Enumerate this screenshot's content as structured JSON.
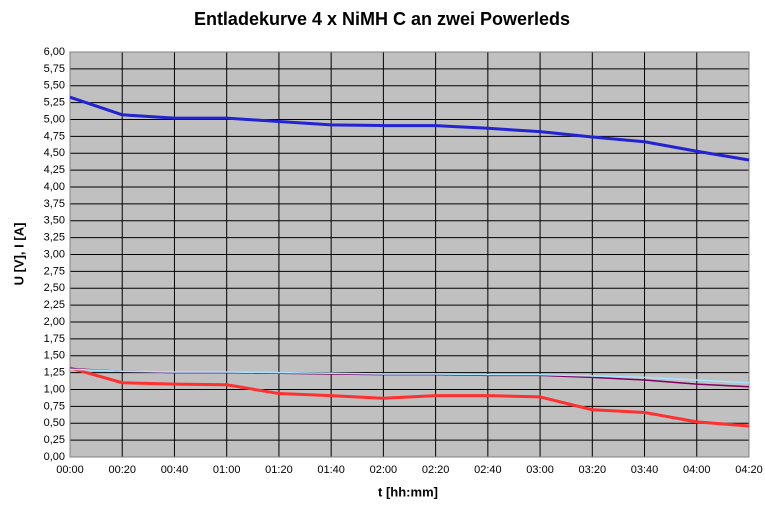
{
  "chart_data": {
    "type": "line",
    "title": "Entladekurve 4 x NiMH C an zwei Powerleds",
    "x_label": "t [hh:mm]",
    "y_label": "U [V], I [A]",
    "categories": [
      "00:00",
      "00:20",
      "00:40",
      "01:00",
      "01:20",
      "01:40",
      "02:00",
      "02:20",
      "02:40",
      "03:00",
      "03:20",
      "03:40",
      "04:00",
      "04:20"
    ],
    "series": [
      {
        "color": "#2323d2",
        "values": [
          5.33,
          5.07,
          5.02,
          5.02,
          4.97,
          4.92,
          4.91,
          4.91,
          4.87,
          4.82,
          4.74,
          4.67,
          4.53,
          4.4
        ]
      },
      {
        "color": "#ff3030",
        "values": [
          1.32,
          1.1,
          1.08,
          1.07,
          0.94,
          0.91,
          0.87,
          0.91,
          0.91,
          0.89,
          0.7,
          0.66,
          0.52,
          0.46
        ]
      },
      {
        "color": "#800060",
        "values": [
          1.31,
          1.27,
          1.25,
          1.25,
          1.24,
          1.23,
          1.22,
          1.22,
          1.21,
          1.21,
          1.18,
          1.14,
          1.08,
          1.04
        ]
      },
      {
        "color": "#a8e4ff",
        "values": [
          1.3,
          1.27,
          1.26,
          1.26,
          1.25,
          1.24,
          1.23,
          1.23,
          1.22,
          1.22,
          1.2,
          1.18,
          1.14,
          1.1
        ]
      }
    ],
    "ylim": [
      0,
      6
    ],
    "yticks": [
      {
        "value": 0,
        "label": "0,00"
      },
      {
        "value": 0.25,
        "label": "0,25"
      },
      {
        "value": 0.5,
        "label": "0,50"
      },
      {
        "value": 0.75,
        "label": "0,75"
      },
      {
        "value": 1,
        "label": "1,00"
      },
      {
        "value": 1.25,
        "label": "1,25"
      },
      {
        "value": 1.5,
        "label": "1,50"
      },
      {
        "value": 1.75,
        "label": "1,75"
      },
      {
        "value": 2,
        "label": "2,00"
      },
      {
        "value": 2.25,
        "label": "2,25"
      },
      {
        "value": 2.5,
        "label": "2,50"
      },
      {
        "value": 2.75,
        "label": "2,75"
      },
      {
        "value": 3,
        "label": "3,00"
      },
      {
        "value": 3.25,
        "label": "3,25"
      },
      {
        "value": 3.5,
        "label": "3,50"
      },
      {
        "value": 3.75,
        "label": "3,75"
      },
      {
        "value": 4,
        "label": "4,00"
      },
      {
        "value": 4.25,
        "label": "4,25"
      },
      {
        "value": 4.5,
        "label": "4,50"
      },
      {
        "value": 4.75,
        "label": "4,75"
      },
      {
        "value": 5,
        "label": "5,00"
      },
      {
        "value": 5.25,
        "label": "5,25"
      },
      {
        "value": 5.5,
        "label": "5,50"
      },
      {
        "value": 5.75,
        "label": "5,75"
      },
      {
        "value": 6,
        "label": "6,00"
      }
    ],
    "grid": true
  }
}
